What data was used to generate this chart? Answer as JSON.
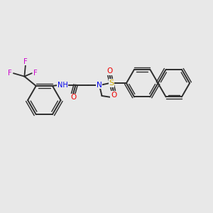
{
  "background_color": "#e8e8e8",
  "bond_color": "#2d2d2d",
  "N_color": "#0000ee",
  "O_color": "#ee0000",
  "S_color": "#ccaa00",
  "F_color": "#cc00cc",
  "figsize": [
    3.0,
    3.0
  ],
  "dpi": 100,
  "xlim": [
    0,
    10
  ],
  "ylim": [
    0,
    10
  ]
}
